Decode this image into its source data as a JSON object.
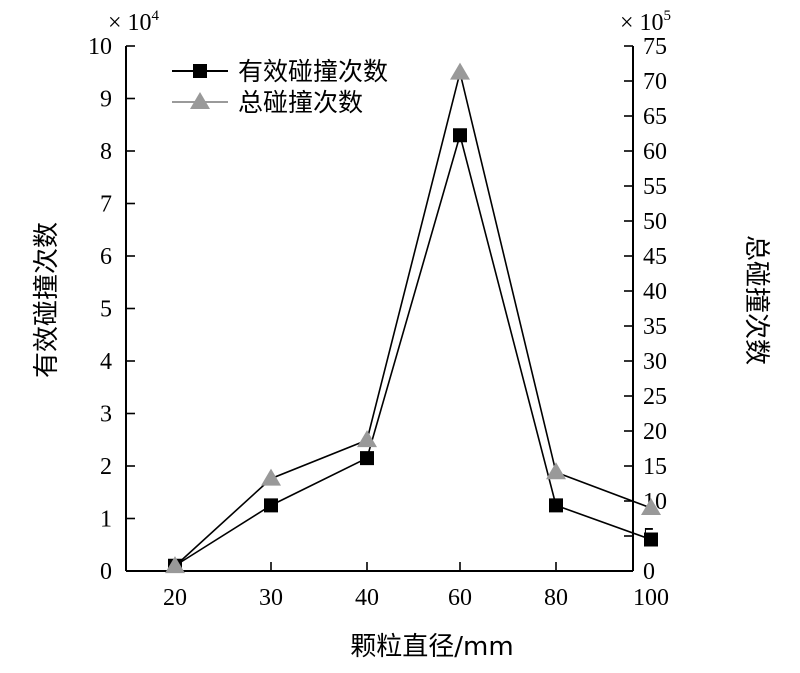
{
  "chart_data": {
    "type": "line",
    "categories": [
      "20",
      "30",
      "40",
      "60",
      "80",
      "100"
    ],
    "xlabel": "颗粒直径/mm",
    "ylabel_left": "有效碰撞次数",
    "ylabel_right": "总碰撞次数",
    "left_multiplier": "× 10",
    "left_exponent": "4",
    "right_multiplier": "× 10",
    "right_exponent": "5",
    "ylim_left": [
      0,
      10
    ],
    "ylim_right": [
      0,
      75
    ],
    "yticks_left": [
      0,
      1,
      2,
      3,
      4,
      5,
      6,
      7,
      8,
      9,
      10
    ],
    "yticks_right": [
      0,
      5,
      10,
      15,
      20,
      25,
      30,
      35,
      40,
      45,
      50,
      55,
      60,
      65,
      70,
      75
    ],
    "legend_position": "top-left",
    "grid": false,
    "series": [
      {
        "name": "有效碰撞次数",
        "axis": "left",
        "marker": "square",
        "color": "#000000",
        "values": [
          0.1,
          1.25,
          2.15,
          8.3,
          1.25,
          0.6
        ]
      },
      {
        "name": "总碰撞次数",
        "axis": "right",
        "marker": "triangle",
        "color": "#999999",
        "values": [
          0.7,
          13.2,
          18.7,
          71.2,
          14.1,
          9.0
        ]
      }
    ]
  }
}
